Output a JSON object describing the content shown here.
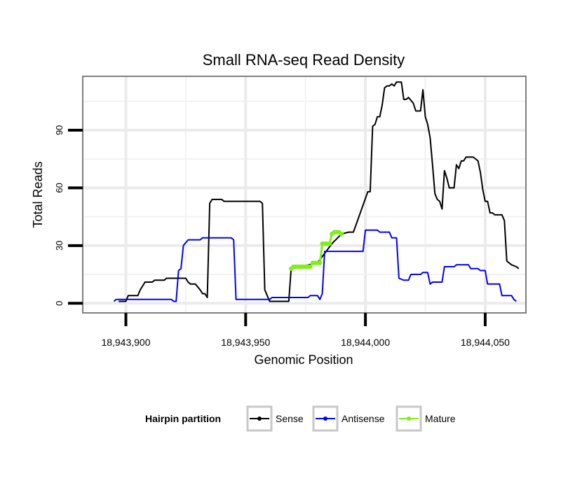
{
  "chart_data": {
    "type": "line",
    "title": "Small RNA-seq Read Density",
    "xlabel": "Genomic Position",
    "ylabel": "Total Reads",
    "xlim": [
      18943882,
      18944067
    ],
    "ylim": [
      -5,
      118
    ],
    "x_ticks": [
      {
        "value": 18943900,
        "label": "18,943,900"
      },
      {
        "value": 18943950,
        "label": "18,943,950"
      },
      {
        "value": 18944000,
        "label": "18,944,000"
      },
      {
        "value": 18944050,
        "label": "18,944,050"
      }
    ],
    "y_ticks": [
      {
        "value": 0,
        "label": "0"
      },
      {
        "value": 30,
        "label": "30"
      },
      {
        "value": 60,
        "label": "60"
      },
      {
        "value": 90,
        "label": "90"
      }
    ],
    "grid": true,
    "legend": {
      "title": "Hairpin partition",
      "position": "bottom",
      "entries": [
        "Sense",
        "Antisense",
        "Mature"
      ]
    },
    "series": [
      {
        "name": "Sense",
        "color": "#000000",
        "points": [
          [
            18943897,
            1
          ],
          [
            18943900,
            1
          ],
          [
            18943901,
            4
          ],
          [
            18943905,
            4
          ],
          [
            18943906,
            7
          ],
          [
            18943908,
            11
          ],
          [
            18943911,
            11
          ],
          [
            18943912,
            12
          ],
          [
            18943916,
            12
          ],
          [
            18943917,
            13
          ],
          [
            18943925,
            13
          ],
          [
            18943926,
            11
          ],
          [
            18943927,
            10
          ],
          [
            18943929,
            10
          ],
          [
            18943931,
            7
          ],
          [
            18943932,
            5
          ],
          [
            18943933,
            5
          ],
          [
            18943934,
            3
          ],
          [
            18943935,
            52
          ],
          [
            18943936,
            54
          ],
          [
            18943940,
            54
          ],
          [
            18943941,
            53
          ],
          [
            18943956,
            53
          ],
          [
            18943957,
            52
          ],
          [
            18943958,
            7
          ],
          [
            18943960,
            1
          ],
          [
            18943968,
            1
          ],
          [
            18943969,
            18
          ],
          [
            18943980,
            21
          ],
          [
            18943986,
            31
          ],
          [
            18943990,
            36
          ],
          [
            18943993,
            37
          ],
          [
            18943995,
            37
          ],
          [
            18944001,
            58
          ],
          [
            18944002,
            58
          ],
          [
            18944003,
            92
          ],
          [
            18944004,
            93
          ],
          [
            18944005,
            97
          ],
          [
            18944006,
            97
          ],
          [
            18944007,
            103
          ],
          [
            18944008,
            112
          ],
          [
            18944009,
            113
          ],
          [
            18944010,
            113
          ],
          [
            18944011,
            114
          ],
          [
            18944012,
            113
          ],
          [
            18944013,
            115
          ],
          [
            18944015,
            115
          ],
          [
            18944016,
            106
          ],
          [
            18944017,
            106
          ],
          [
            18944018,
            107
          ],
          [
            18944020,
            104
          ],
          [
            18944021,
            100
          ],
          [
            18944023,
            100
          ],
          [
            18944024,
            111
          ],
          [
            18944025,
            97
          ],
          [
            18944026,
            93
          ],
          [
            18944027,
            86
          ],
          [
            18944028,
            72
          ],
          [
            18944029,
            57
          ],
          [
            18944030,
            54
          ],
          [
            18944031,
            53
          ],
          [
            18944032,
            49
          ],
          [
            18944033,
            69
          ],
          [
            18944034,
            65
          ],
          [
            18944035,
            60
          ],
          [
            18944037,
            60
          ],
          [
            18944038,
            72
          ],
          [
            18944039,
            70
          ],
          [
            18944040,
            74
          ],
          [
            18944041,
            74
          ],
          [
            18944042,
            76
          ],
          [
            18944045,
            76
          ],
          [
            18944047,
            74
          ],
          [
            18944048,
            68
          ],
          [
            18944049,
            59
          ],
          [
            18944050,
            53
          ],
          [
            18944051,
            53
          ],
          [
            18944052,
            47
          ],
          [
            18944053,
            47
          ],
          [
            18944054,
            46
          ],
          [
            18944057,
            46
          ],
          [
            18944058,
            43
          ],
          [
            18944059,
            22
          ],
          [
            18944060,
            21
          ],
          [
            18944061,
            20
          ],
          [
            18944063,
            19
          ],
          [
            18944064,
            18
          ]
        ]
      },
      {
        "name": "Antisense",
        "color": "#0000ff",
        "points": [
          [
            18943895,
            1
          ],
          [
            18943896,
            2
          ],
          [
            18943919,
            2
          ],
          [
            18943920,
            1
          ],
          [
            18943921,
            1
          ],
          [
            18943922,
            17
          ],
          [
            18943923,
            18
          ],
          [
            18943924,
            30
          ],
          [
            18943926,
            33
          ],
          [
            18943931,
            33
          ],
          [
            18943932,
            34
          ],
          [
            18943944,
            34
          ],
          [
            18943945,
            33
          ],
          [
            18943946,
            2
          ],
          [
            18943960,
            2
          ],
          [
            18943961,
            3
          ],
          [
            18943976,
            3
          ],
          [
            18943977,
            4
          ],
          [
            18943980,
            4
          ],
          [
            18943981,
            2
          ],
          [
            18943982,
            5
          ],
          [
            18943983,
            27
          ],
          [
            18943999,
            27
          ],
          [
            18944000,
            38
          ],
          [
            18944005,
            38
          ],
          [
            18944006,
            37
          ],
          [
            18944010,
            37
          ],
          [
            18944011,
            34
          ],
          [
            18944013,
            34
          ],
          [
            18944014,
            13
          ],
          [
            18944016,
            12
          ],
          [
            18944018,
            12
          ],
          [
            18944019,
            15
          ],
          [
            18944023,
            15
          ],
          [
            18944024,
            16
          ],
          [
            18944026,
            16
          ],
          [
            18944027,
            10
          ],
          [
            18944028,
            11
          ],
          [
            18944032,
            11
          ],
          [
            18944033,
            19
          ],
          [
            18944037,
            19
          ],
          [
            18944038,
            20
          ],
          [
            18944043,
            20
          ],
          [
            18944044,
            18
          ],
          [
            18944047,
            18
          ],
          [
            18944048,
            17
          ],
          [
            18944050,
            17
          ],
          [
            18944051,
            10
          ],
          [
            18944056,
            10
          ],
          [
            18944057,
            4
          ],
          [
            18944061,
            4
          ],
          [
            18944062,
            2
          ],
          [
            18944063,
            1
          ]
        ]
      },
      {
        "name": "Mature",
        "color": "#80ee1c",
        "points": [
          [
            18943969,
            18
          ],
          [
            18943970,
            19
          ],
          [
            18943971,
            19
          ],
          [
            18943972,
            19
          ],
          [
            18943973,
            19
          ],
          [
            18943974,
            19
          ],
          [
            18943975,
            19
          ],
          [
            18943976,
            19
          ],
          [
            18943977,
            19
          ],
          [
            18943978,
            21
          ],
          [
            18943979,
            21
          ],
          [
            18943980,
            21
          ],
          [
            18943981,
            21
          ],
          [
            18943982,
            31
          ],
          [
            18943983,
            31
          ],
          [
            18943984,
            31
          ],
          [
            18943985,
            31
          ],
          [
            18943986,
            36
          ],
          [
            18943987,
            37
          ],
          [
            18943988,
            37
          ],
          [
            18943989,
            37
          ],
          [
            18943990,
            36
          ]
        ]
      }
    ]
  }
}
